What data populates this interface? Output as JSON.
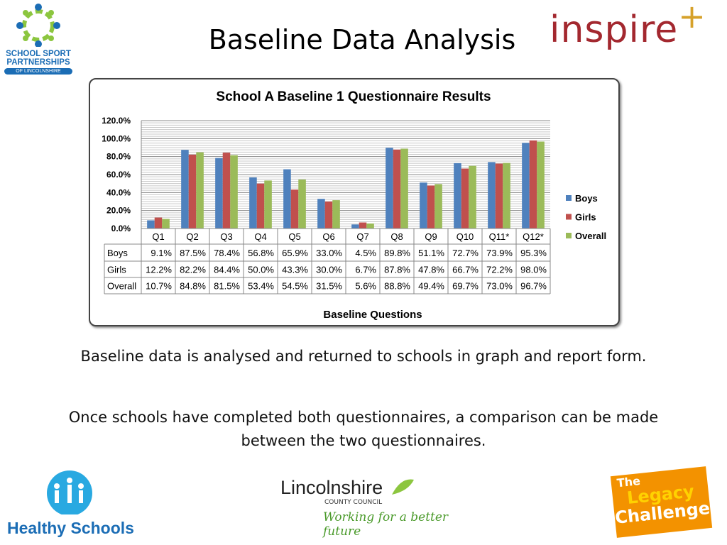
{
  "slide": {
    "title": "Baseline Data Analysis",
    "paragraph1": "Baseline data is analysed and returned to schools in graph and report form.",
    "paragraph2": "Once schools have completed both questionnaires, a comparison can be made between the two questionnaires."
  },
  "logos": {
    "ssp": {
      "line1": "SCHOOL SPORT",
      "line2": "PARTNERSHIPS",
      "line3": "OF LINCOLNSHIRE"
    },
    "inspire": {
      "text": "inspire",
      "plus": "+"
    },
    "healthy_schools": "Healthy Schools",
    "lcc": {
      "line1": "Lincolnshire",
      "line2": "COUNTY COUNCIL",
      "tagline": "Working for a better future"
    },
    "legacy": {
      "line1": "The",
      "line2": "Legacy",
      "line3": "Challenge"
    }
  },
  "chart_data": {
    "type": "bar",
    "title": "School A Baseline 1 Questionnaire Results",
    "xlabel": "Baseline Questions",
    "ylabel": "",
    "ylim": [
      0,
      120
    ],
    "yticks": [
      "0.0%",
      "20.0%",
      "40.0%",
      "60.0%",
      "80.0%",
      "100.0%",
      "120.0%"
    ],
    "grid": true,
    "legend_position": "right",
    "categories": [
      "Q1",
      "Q2",
      "Q3",
      "Q4",
      "Q5",
      "Q6",
      "Q7",
      "Q8",
      "Q9",
      "Q10",
      "Q11*",
      "Q12*"
    ],
    "series": [
      {
        "name": "Boys",
        "color": "#4F81BD",
        "values": [
          9.1,
          87.5,
          78.4,
          56.8,
          65.9,
          33.0,
          4.5,
          89.8,
          51.1,
          72.7,
          73.9,
          95.3
        ]
      },
      {
        "name": "Girls",
        "color": "#C0504D",
        "values": [
          12.2,
          82.2,
          84.4,
          50.0,
          43.3,
          30.0,
          6.7,
          87.8,
          47.8,
          66.7,
          72.2,
          98.0
        ]
      },
      {
        "name": "Overall",
        "color": "#9BBB59",
        "values": [
          10.7,
          84.8,
          81.5,
          53.4,
          54.5,
          31.5,
          5.6,
          88.8,
          49.4,
          69.7,
          73.0,
          96.7
        ]
      }
    ],
    "data_table": true
  }
}
